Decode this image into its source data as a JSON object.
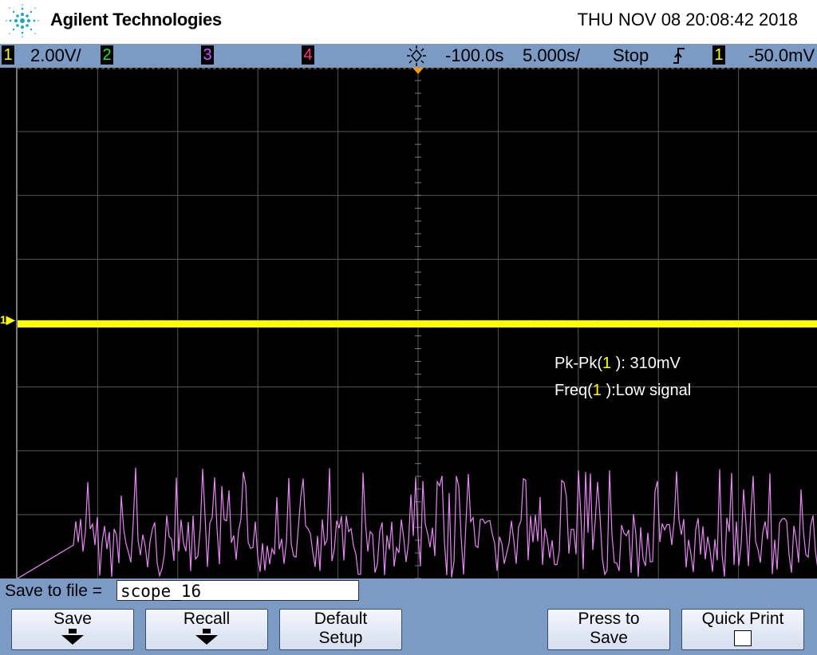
{
  "header": {
    "brand": "Agilent Technologies",
    "datetime": "THU NOV 08 20:08:42 2018",
    "logo_icon": "agilent-spark-icon",
    "logo_color": "#1aa7b8"
  },
  "status_bar": {
    "ch1": {
      "number": "1",
      "scale": "2.00V/",
      "color": "#ffff00"
    },
    "ch2": {
      "number": "2",
      "color": "#33dd33"
    },
    "ch3": {
      "number": "3",
      "color": "#cc55ff"
    },
    "ch4": {
      "number": "4",
      "color": "#ff3377"
    },
    "time_icon": "time-reference-icon",
    "delay": "-100.0s",
    "timebase": "5.000s/",
    "run_state": "Stop",
    "trigger_icon": "rising-edge-icon",
    "trigger_source": "1",
    "trigger_level": "-50.0mV"
  },
  "measurements": {
    "pkpk_prefix": "Pk-Pk(",
    "pkpk_channel": "1",
    "pkpk_suffix": " ): 310mV",
    "freq_prefix": "Freq(",
    "freq_channel": "1",
    "freq_suffix": " ):Low signal"
  },
  "channel_marker": "1",
  "save_menu": {
    "label": "Save to file =",
    "filename": "scope_16",
    "softkeys": {
      "save": "Save",
      "recall": "Recall",
      "default_line1": "Default",
      "default_line2": "Setup",
      "press_line1": "Press to",
      "press_line2": "Save",
      "quick_print": "Quick Print"
    }
  }
}
